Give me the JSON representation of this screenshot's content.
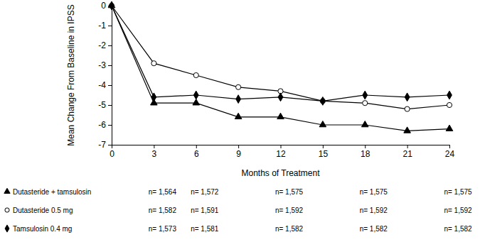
{
  "chart_data": {
    "type": "line",
    "x_label": "Months of Treatment",
    "y_label": "Mean Change From Baseline in IPSS",
    "x": [
      0,
      3,
      6,
      9,
      12,
      15,
      18,
      21,
      24
    ],
    "xlim": [
      0,
      24
    ],
    "xticks": [
      0,
      3,
      6,
      9,
      12,
      15,
      18,
      21,
      24
    ],
    "ylim": [
      -7,
      0
    ],
    "yticks": [
      0,
      -1,
      -2,
      -3,
      -4,
      -5,
      -6,
      -7
    ],
    "n_months": [
      3,
      6,
      12,
      18,
      24
    ],
    "series": [
      {
        "name": "Dutasteride + tamsulosin",
        "color": "#000000",
        "marker": "triangle",
        "line_style": "solid",
        "values": [
          0,
          -4.9,
          -4.9,
          -5.6,
          -5.6,
          -6.0,
          -6.0,
          -6.3,
          -6.2
        ],
        "n": [
          1564,
          1572,
          1575,
          1575,
          1575
        ],
        "n_labels": [
          "n= 1,564",
          "n= 1,572",
          "n= 1,575",
          "n= 1,575",
          "n= 1,575"
        ]
      },
      {
        "name": "Dutasteride 0.5 mg",
        "color": "#000000",
        "marker": "open-circle",
        "line_style": "solid",
        "values": [
          0,
          -2.9,
          -3.5,
          -4.1,
          -4.3,
          -4.8,
          -4.9,
          -5.2,
          -5.0
        ],
        "n": [
          1582,
          1591,
          1592,
          1592,
          1592
        ],
        "n_labels": [
          "n= 1,582",
          "n= 1,591",
          "n= 1,592",
          "n= 1,592",
          "n= 1,592"
        ]
      },
      {
        "name": "Tamsulosin 0.4 mg",
        "color": "#000000",
        "marker": "diamond",
        "line_style": "solid",
        "values": [
          0,
          -4.6,
          -4.5,
          -4.7,
          -4.6,
          -4.8,
          -4.5,
          -4.6,
          -4.5
        ],
        "n": [
          1573,
          1581,
          1582,
          1582,
          1582
        ],
        "n_labels": [
          "n= 1,573",
          "n= 1,581",
          "n= 1,582",
          "n= 1,582",
          "n= 1,582"
        ]
      }
    ]
  }
}
